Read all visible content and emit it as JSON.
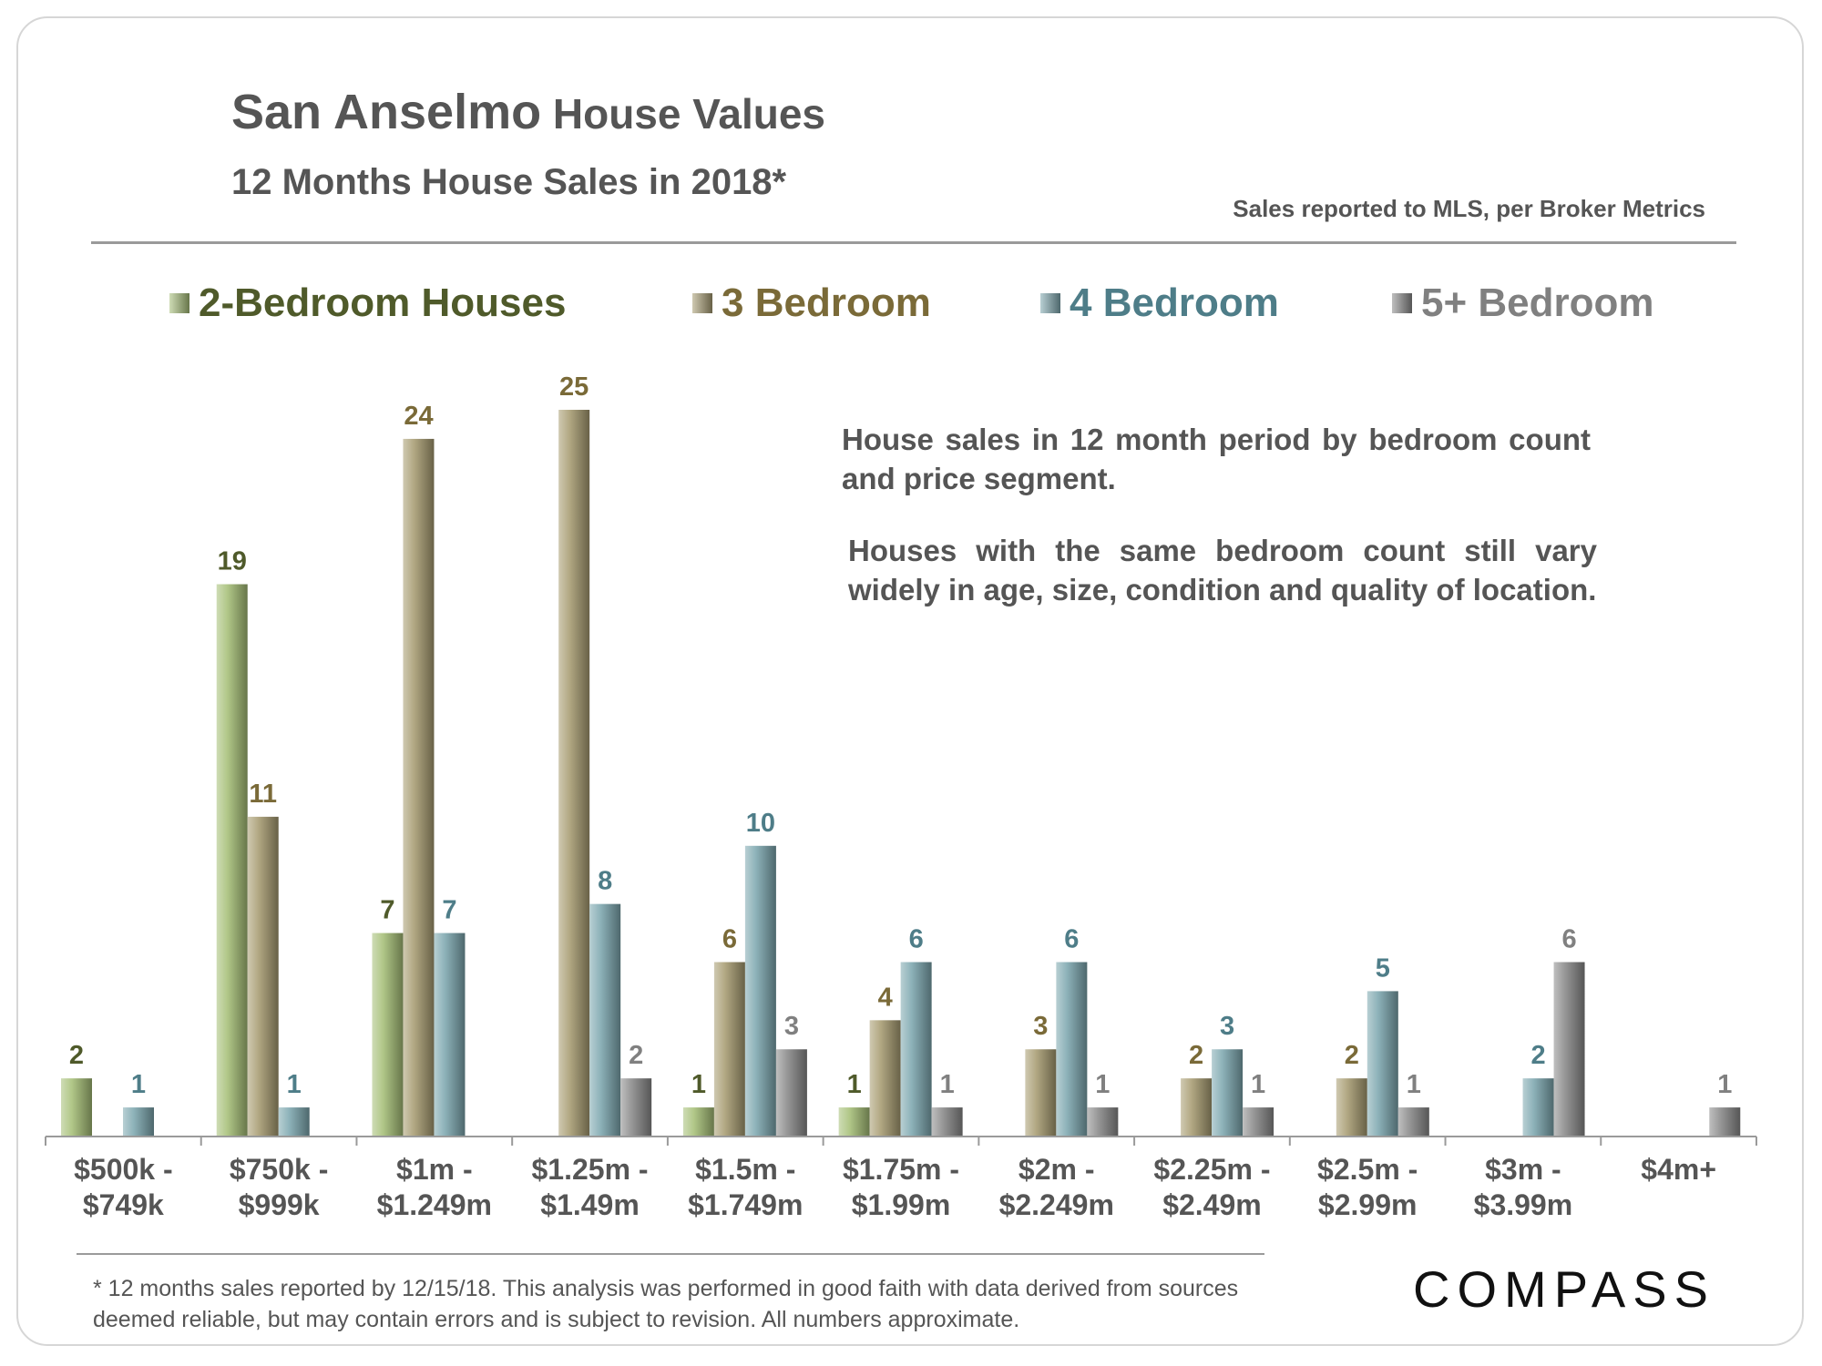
{
  "header": {
    "title_place": "San Anselmo",
    "title_rest": " House Values",
    "subtitle": "12 Months House Sales in 2018*",
    "source": "Sales reported to MLS, per Broker Metrics"
  },
  "notes": {
    "note1": "House sales in 12 month period by bedroom count and price segment.",
    "note2": "Houses with the same bedroom count still vary widely in age, size, condition and quality of location."
  },
  "footer": {
    "footnote": "* 12 months sales reported by 12/15/18. This analysis was performed in good faith with data derived from sources deemed reliable, but may contain errors and is subject to revision. All numbers approximate.",
    "logo": "COMPASS"
  },
  "colors": {
    "two_bed": "#a6bf78",
    "three_bed": "#a89c72",
    "four_bed": "#7ea8af",
    "five_bed": "#8a8a8a",
    "two_bed_text": "#4f5a2a",
    "three_bed_text": "#7a6a38",
    "four_bed_text": "#4e7d88",
    "five_bed_text": "#808080",
    "text_gray": "#555555"
  },
  "chart_data": {
    "type": "bar",
    "title": "San Anselmo House Values",
    "subtitle": "12 Months House Sales in 2018*",
    "xlabel": "",
    "ylabel": "",
    "ylim": [
      0,
      25
    ],
    "grid": false,
    "legend_position": "top",
    "categories": [
      [
        "$500k -",
        "$749k"
      ],
      [
        "$750k -",
        "$999k"
      ],
      [
        "$1m -",
        "$1.249m"
      ],
      [
        "$1.25m -",
        "$1.49m"
      ],
      [
        "$1.5m -",
        "$1.749m"
      ],
      [
        "$1.75m -",
        "$1.99m"
      ],
      [
        "$2m -",
        "$2.249m"
      ],
      [
        "$2.25m -",
        "$2.49m"
      ],
      [
        "$2.5m -",
        "$2.99m"
      ],
      [
        "$3m -",
        "$3.99m"
      ],
      [
        "$4m+"
      ]
    ],
    "series": [
      {
        "name": "2-Bedroom Houses",
        "key": "two_bed",
        "values": [
          2,
          19,
          7,
          0,
          1,
          1,
          0,
          0,
          0,
          0,
          0
        ]
      },
      {
        "name": "3 Bedroom",
        "key": "three_bed",
        "values": [
          0,
          11,
          24,
          25,
          6,
          4,
          3,
          2,
          2,
          0,
          0
        ]
      },
      {
        "name": "4 Bedroom",
        "key": "four_bed",
        "values": [
          1,
          1,
          7,
          8,
          10,
          6,
          6,
          3,
          5,
          2,
          0
        ]
      },
      {
        "name": "5+ Bedroom",
        "key": "five_bed",
        "values": [
          0,
          0,
          0,
          2,
          3,
          1,
          1,
          1,
          1,
          6,
          1
        ]
      }
    ]
  }
}
